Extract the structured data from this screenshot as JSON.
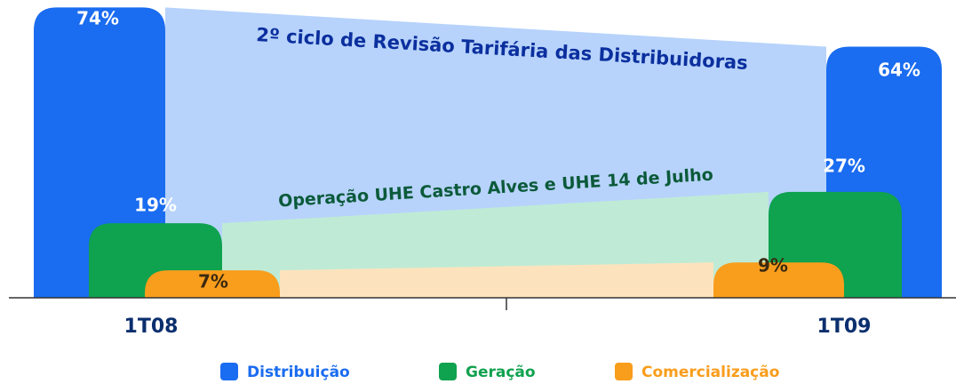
{
  "chart_data": {
    "type": "bar",
    "categories": [
      "1T08",
      "1T09"
    ],
    "series": [
      {
        "name": "Distribuição",
        "color": "#1a6cf0",
        "band_color": "#b7d3fb",
        "label_color": "#ffffff",
        "values": [
          74,
          64
        ],
        "value_labels": [
          "74%",
          "64%"
        ]
      },
      {
        "name": "Geração",
        "color": "#0fa24f",
        "band_color": "#bfebd6",
        "label_color": "#ffffff",
        "values": [
          19,
          27
        ],
        "value_labels": [
          "19%",
          "27%"
        ]
      },
      {
        "name": "Comercialização",
        "color": "#f99d1c",
        "band_color": "#fde3bd",
        "label_color": "#3a2a10",
        "values": [
          7,
          9
        ],
        "value_labels": [
          "7%",
          "9%"
        ]
      }
    ],
    "annotations": [
      "2º ciclo de Revisão Tarifária das Distribuidoras",
      "Operação UHE Castro Alves e UHE 14 de Julho"
    ],
    "ylim": [
      0,
      75
    ]
  }
}
